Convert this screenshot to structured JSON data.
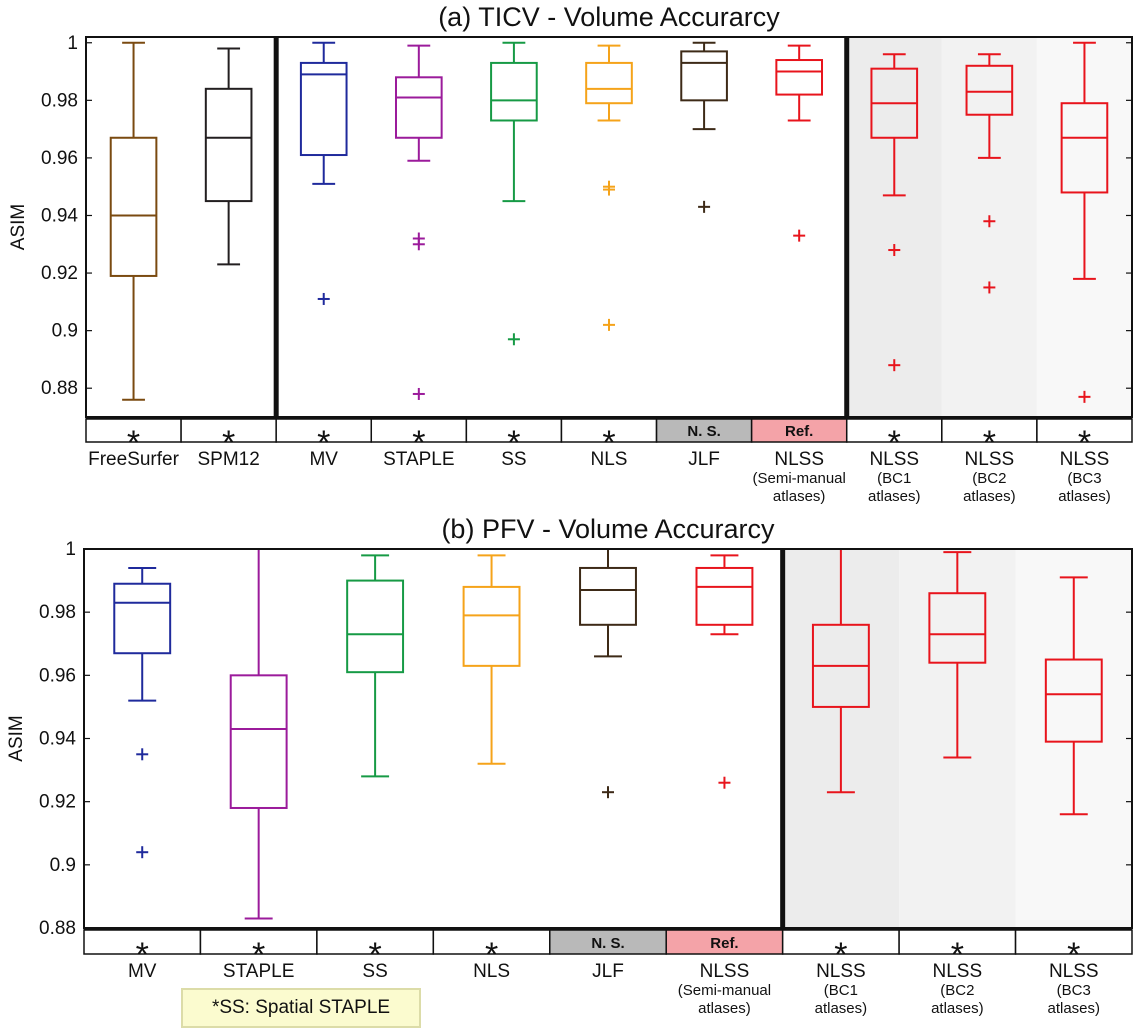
{
  "note": "*SS: Spatial STAPLE",
  "chart_data": [
    {
      "type": "box",
      "title": "(a) TICV - Volume Accurarcy",
      "ylabel": "ASIM",
      "ylim": [
        0.87,
        1.002
      ],
      "yticks": [
        "0.88",
        "0.9",
        "0.92",
        "0.94",
        "0.96",
        "0.98",
        "1"
      ],
      "separators_after": [
        1,
        7
      ],
      "shaded_from": 8,
      "categories": [
        {
          "name": "FreeSurfer",
          "sub": [],
          "color": "#7a4a10",
          "whisker_low": 0.876,
          "q1": 0.919,
          "median": 0.94,
          "q3": 0.967,
          "whisker_high": 1.0,
          "outliers": [],
          "significance": "*"
        },
        {
          "name": "SPM12",
          "sub": [],
          "color": "#231f20",
          "whisker_low": 0.923,
          "q1": 0.945,
          "median": 0.967,
          "q3": 0.984,
          "whisker_high": 0.998,
          "outliers": [],
          "significance": "*"
        },
        {
          "name": "MV",
          "sub": [],
          "color": "#1f2a9c",
          "whisker_low": 0.951,
          "q1": 0.961,
          "median": 0.989,
          "q3": 0.993,
          "whisker_high": 1.0,
          "outliers": [
            0.911
          ],
          "significance": "*"
        },
        {
          "name": "STAPLE",
          "sub": [],
          "color": "#9b1b9b",
          "whisker_low": 0.959,
          "q1": 0.967,
          "median": 0.981,
          "q3": 0.988,
          "whisker_high": 0.999,
          "outliers": [
            0.932,
            0.93,
            0.878
          ],
          "significance": "*"
        },
        {
          "name": "SS",
          "sub": [],
          "color": "#169a45",
          "whisker_low": 0.945,
          "q1": 0.973,
          "median": 0.98,
          "q3": 0.993,
          "whisker_high": 1.0,
          "outliers": [
            0.897
          ],
          "significance": "*"
        },
        {
          "name": "NLS",
          "sub": [],
          "color": "#f5a31a",
          "whisker_low": 0.973,
          "q1": 0.979,
          "median": 0.984,
          "q3": 0.993,
          "whisker_high": 0.999,
          "outliers": [
            0.95,
            0.949,
            0.902
          ],
          "significance": "*"
        },
        {
          "name": "JLF",
          "sub": [],
          "color": "#3d2a17",
          "whisker_low": 0.97,
          "q1": 0.98,
          "median": 0.993,
          "q3": 0.997,
          "whisker_high": 1.0,
          "outliers": [
            0.943
          ],
          "significance": "N. S."
        },
        {
          "name": "NLSS",
          "sub": [
            "(Semi-manual",
            "atlases)"
          ],
          "color": "#e8141c",
          "whisker_low": 0.973,
          "q1": 0.982,
          "median": 0.99,
          "q3": 0.994,
          "whisker_high": 0.999,
          "outliers": [
            0.933
          ],
          "significance": "Ref."
        },
        {
          "name": "NLSS",
          "sub": [
            "(BC1",
            "atlases)"
          ],
          "color": "#e8141c",
          "whisker_low": 0.947,
          "q1": 0.967,
          "median": 0.979,
          "q3": 0.991,
          "whisker_high": 0.996,
          "outliers": [
            0.928,
            0.888
          ],
          "significance": "*"
        },
        {
          "name": "NLSS",
          "sub": [
            "(BC2",
            "atlases)"
          ],
          "color": "#e8141c",
          "whisker_low": 0.96,
          "q1": 0.975,
          "median": 0.983,
          "q3": 0.992,
          "whisker_high": 0.996,
          "outliers": [
            0.938,
            0.915
          ],
          "significance": "*"
        },
        {
          "name": "NLSS",
          "sub": [
            "(BC3",
            "atlases)"
          ],
          "color": "#e8141c",
          "whisker_low": 0.918,
          "q1": 0.948,
          "median": 0.967,
          "q3": 0.979,
          "whisker_high": 1.0,
          "outliers": [
            0.877
          ],
          "significance": "*"
        }
      ]
    },
    {
      "type": "box",
      "title": "(b) PFV - Volume Accurarcy",
      "ylabel": "ASIM",
      "ylim": [
        0.88,
        1.0
      ],
      "yticks": [
        "0.88",
        "0.9",
        "0.92",
        "0.94",
        "0.96",
        "0.98",
        "1"
      ],
      "separators_after": [
        5
      ],
      "shaded_from": 6,
      "categories": [
        {
          "name": "MV",
          "sub": [],
          "color": "#1f2a9c",
          "whisker_low": 0.952,
          "q1": 0.967,
          "median": 0.983,
          "q3": 0.989,
          "whisker_high": 0.994,
          "outliers": [
            0.935,
            0.904
          ],
          "significance": "*"
        },
        {
          "name": "STAPLE",
          "sub": [],
          "color": "#9b1b9b",
          "whisker_low": 0.883,
          "q1": 0.918,
          "median": 0.943,
          "q3": 0.96,
          "whisker_high": 1.0,
          "outliers": [],
          "significance": "*"
        },
        {
          "name": "SS",
          "sub": [],
          "color": "#169a45",
          "whisker_low": 0.928,
          "q1": 0.961,
          "median": 0.973,
          "q3": 0.99,
          "whisker_high": 0.998,
          "outliers": [],
          "significance": "*"
        },
        {
          "name": "NLS",
          "sub": [],
          "color": "#f5a31a",
          "whisker_low": 0.932,
          "q1": 0.963,
          "median": 0.979,
          "q3": 0.988,
          "whisker_high": 0.998,
          "outliers": [],
          "significance": "*"
        },
        {
          "name": "JLF",
          "sub": [],
          "color": "#3d2a17",
          "whisker_low": 0.966,
          "q1": 0.976,
          "median": 0.987,
          "q3": 0.994,
          "whisker_high": 1.0,
          "outliers": [
            0.923
          ],
          "significance": "N. S."
        },
        {
          "name": "NLSS",
          "sub": [
            "(Semi-manual",
            "atlases)"
          ],
          "color": "#e8141c",
          "whisker_low": 0.973,
          "q1": 0.976,
          "median": 0.988,
          "q3": 0.994,
          "whisker_high": 0.998,
          "outliers": [
            0.926
          ],
          "significance": "Ref."
        },
        {
          "name": "NLSS",
          "sub": [
            "(BC1",
            "atlases)"
          ],
          "color": "#e8141c",
          "whisker_low": 0.923,
          "q1": 0.95,
          "median": 0.963,
          "q3": 0.976,
          "whisker_high": 1.0,
          "outliers": [],
          "significance": "*"
        },
        {
          "name": "NLSS",
          "sub": [
            "(BC2",
            "atlases)"
          ],
          "color": "#e8141c",
          "whisker_low": 0.934,
          "q1": 0.964,
          "median": 0.973,
          "q3": 0.986,
          "whisker_high": 0.999,
          "outliers": [],
          "significance": "*"
        },
        {
          "name": "NLSS",
          "sub": [
            "(BC3",
            "atlases)"
          ],
          "color": "#e8141c",
          "whisker_low": 0.916,
          "q1": 0.939,
          "median": 0.954,
          "q3": 0.965,
          "whisker_high": 0.991,
          "outliers": [],
          "significance": "*"
        }
      ]
    }
  ]
}
